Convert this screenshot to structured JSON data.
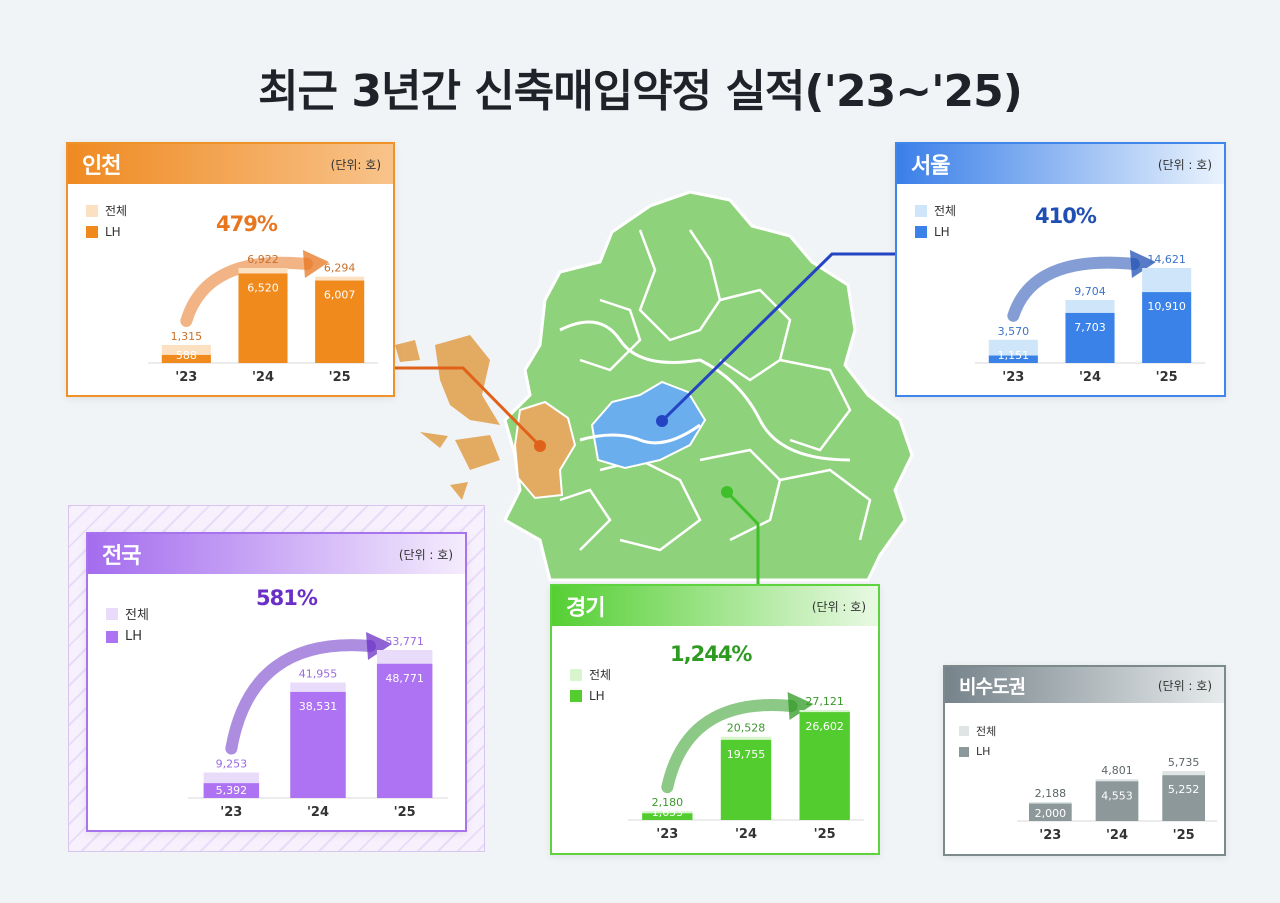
{
  "title": "최근 3년간 신축매입약정 실적('23~'25)",
  "legend": {
    "total": "전체",
    "lh": "LH"
  },
  "chart_data": [
    {
      "type": "bar",
      "region": "인천",
      "unit": "(단위: 호)",
      "categories": [
        "'23",
        "'24",
        "'25"
      ],
      "series": [
        {
          "name": "전체",
          "values": [
            1315,
            6922,
            6294
          ],
          "labels": [
            "1,315",
            "6,922",
            "6,294"
          ]
        },
        {
          "name": "LH",
          "values": [
            588,
            6520,
            6007
          ],
          "labels": [
            "588",
            "6,520",
            "6,007"
          ]
        }
      ],
      "growth": "479%",
      "colors": {
        "header": "#f0922a",
        "total": "#fbe0c2",
        "lh": "#f08a1c",
        "text": "#c8702a",
        "growth": "#e8761f"
      }
    },
    {
      "type": "bar",
      "region": "서울",
      "unit": "(단위 : 호)",
      "categories": [
        "'23",
        "'24",
        "'25"
      ],
      "series": [
        {
          "name": "전체",
          "values": [
            3570,
            9704,
            14621
          ],
          "labels": [
            "3,570",
            "9,704",
            "14,621"
          ]
        },
        {
          "name": "LH",
          "values": [
            1151,
            7703,
            10910
          ],
          "labels": [
            "1,151",
            "7,703",
            "10,910"
          ]
        }
      ],
      "growth": "410%",
      "colors": {
        "header": "#3f86ea",
        "total": "#cfe6fa",
        "lh": "#3a82e8",
        "text": "#3b74c9",
        "growth": "#1f4fb3"
      }
    },
    {
      "type": "bar",
      "region": "전국",
      "unit": "(단위 : 호)",
      "categories": [
        "'23",
        "'24",
        "'25"
      ],
      "series": [
        {
          "name": "전체",
          "values": [
            9253,
            41955,
            53771
          ],
          "labels": [
            "9,253",
            "41,955",
            "53,771"
          ]
        },
        {
          "name": "LH",
          "values": [
            5392,
            38531,
            48771
          ],
          "labels": [
            "5,392",
            "38,531",
            "48,771"
          ]
        }
      ],
      "growth": "581%",
      "colors": {
        "header": "#a874ee",
        "total": "#e8dcfa",
        "lh": "#ad73f3",
        "text": "#9a6be0",
        "growth": "#6a2fc6"
      }
    },
    {
      "type": "bar",
      "region": "경기",
      "unit": "(단위 : 호)",
      "categories": [
        "'23",
        "'24",
        "'25"
      ],
      "series": [
        {
          "name": "전체",
          "values": [
            2180,
            20528,
            27121
          ],
          "labels": [
            "2,180",
            "20,528",
            "27,121"
          ]
        },
        {
          "name": "LH",
          "values": [
            1653,
            19755,
            26602
          ],
          "labels": [
            "1,653",
            "19,755",
            "26,602"
          ]
        }
      ],
      "growth": "1,244%",
      "colors": {
        "header": "#5ed23f",
        "total": "#d8f5cf",
        "lh": "#52cc2e",
        "text": "#3a9a2a",
        "growth": "#2e9a22"
      }
    },
    {
      "type": "bar",
      "region": "비수도권",
      "unit": "(단위 : 호)",
      "categories": [
        "'23",
        "'24",
        "'25"
      ],
      "series": [
        {
          "name": "전체",
          "values": [
            2188,
            4801,
            5735
          ],
          "labels": [
            "2,188",
            "4,801",
            "5,735"
          ]
        },
        {
          "name": "LH",
          "values": [
            2000,
            4553,
            5252
          ],
          "labels": [
            "2,000",
            "4,553",
            "5,252"
          ]
        }
      ],
      "growth": "",
      "colors": {
        "header": "#7d8a8c",
        "total": "#dfe4e5",
        "lh": "#8c9899",
        "text": "#5b6668",
        "growth": "#5b6668"
      }
    }
  ]
}
